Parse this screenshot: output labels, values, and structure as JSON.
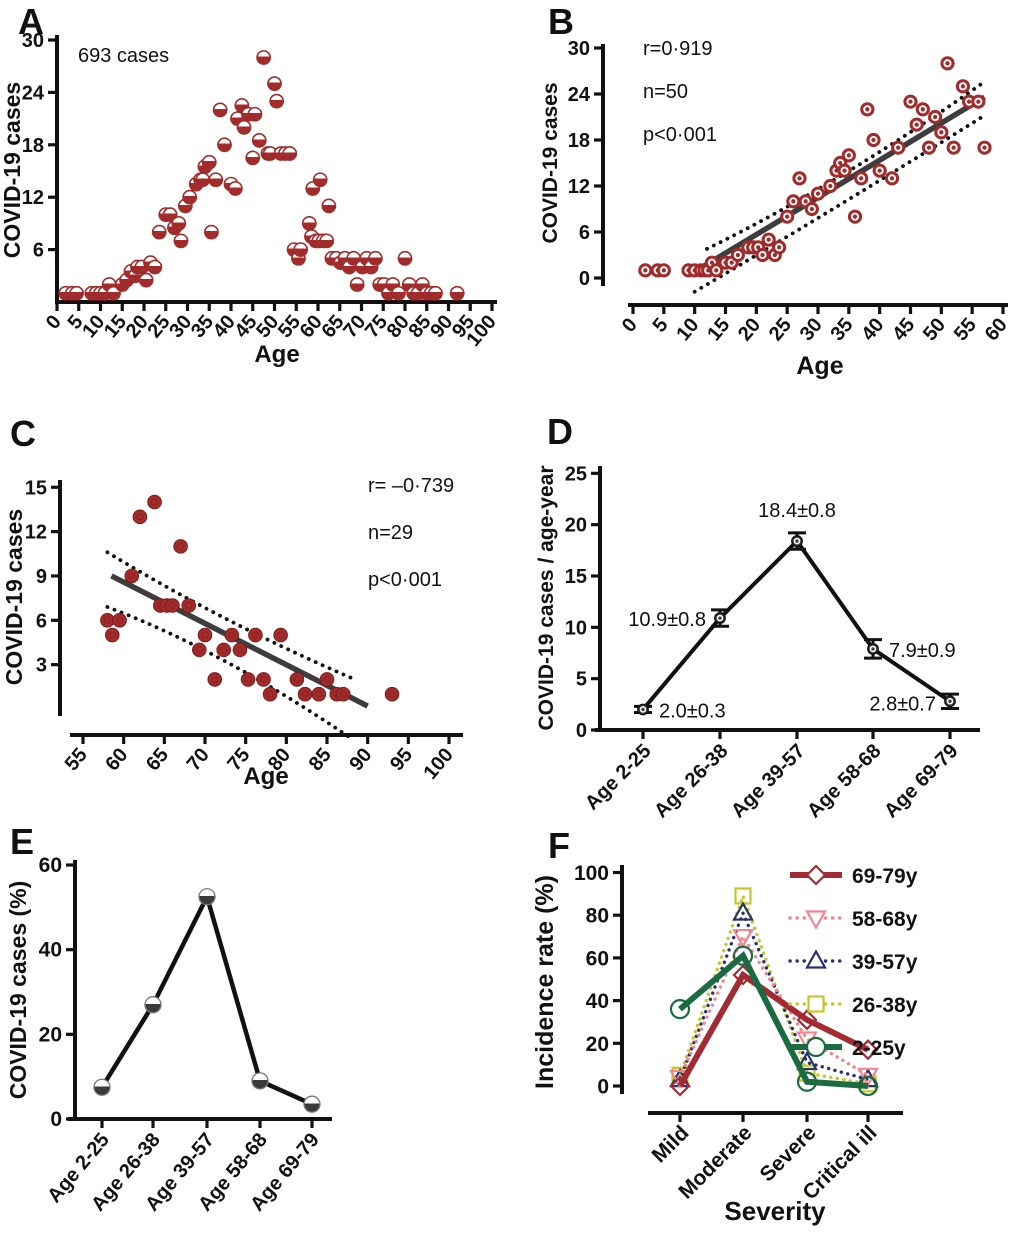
{
  "figure": {
    "description": "Six-panel COVID-19 age distribution figure",
    "panel_letters": [
      "A",
      "B",
      "C",
      "D",
      "E",
      "F"
    ]
  },
  "colors": {
    "scatter_red": "#A22B2B",
    "regression_gray": "#3d3d3d",
    "band_black": "#111111",
    "line_black": "#111111",
    "f_red": "#A32C34",
    "f_pink": "#F2858D",
    "f_navy": "#28316F",
    "f_yellow": "#C6C62C",
    "f_green": "#1A6B40"
  },
  "chart_data": [
    {
      "id": "A",
      "type": "scatter",
      "annotation": "693 cases",
      "xlabel": "Age",
      "ylabel": "COVID-19 cases",
      "x_ticks": [
        0,
        5,
        10,
        15,
        20,
        25,
        30,
        35,
        40,
        45,
        50,
        55,
        60,
        65,
        70,
        75,
        80,
        85,
        90,
        95,
        100
      ],
      "y_ticks": [
        6,
        12,
        18,
        24,
        30
      ],
      "xlim": [
        0,
        101
      ],
      "ylim": [
        0,
        30
      ],
      "marker": "half-filled-circle",
      "color": "#A22B2B",
      "points": [
        [
          2,
          1
        ],
        [
          3.5,
          1
        ],
        [
          4.5,
          1
        ],
        [
          8,
          1
        ],
        [
          9,
          1
        ],
        [
          10,
          1
        ],
        [
          11,
          1
        ],
        [
          12,
          2
        ],
        [
          13,
          1
        ],
        [
          15,
          2
        ],
        [
          16,
          2.5
        ],
        [
          17,
          3.5
        ],
        [
          18,
          3
        ],
        [
          18.5,
          4
        ],
        [
          19.5,
          4
        ],
        [
          20.5,
          2.5
        ],
        [
          21.5,
          4.5
        ],
        [
          22.5,
          4
        ],
        [
          23.5,
          8
        ],
        [
          25,
          10
        ],
        [
          26,
          10
        ],
        [
          27,
          8.5
        ],
        [
          28,
          9
        ],
        [
          28.5,
          7
        ],
        [
          29.5,
          11
        ],
        [
          30.5,
          12
        ],
        [
          32,
          13.5
        ],
        [
          33,
          14
        ],
        [
          33.5,
          14
        ],
        [
          34,
          15.5
        ],
        [
          35,
          16
        ],
        [
          35.5,
          8
        ],
        [
          36.5,
          14
        ],
        [
          37.5,
          22
        ],
        [
          38.5,
          18
        ],
        [
          40,
          13.5
        ],
        [
          41,
          13
        ],
        [
          41.5,
          21
        ],
        [
          42.5,
          22.5
        ],
        [
          43,
          20
        ],
        [
          44,
          21.5
        ],
        [
          45,
          16.5
        ],
        [
          45.5,
          21.5
        ],
        [
          46.5,
          18.5
        ],
        [
          47.5,
          28
        ],
        [
          48.5,
          17
        ],
        [
          49,
          17
        ],
        [
          50,
          25
        ],
        [
          50.5,
          23
        ],
        [
          51.5,
          17
        ],
        [
          52.5,
          17
        ],
        [
          53.5,
          17
        ],
        [
          54.5,
          6
        ],
        [
          55.5,
          5
        ],
        [
          56,
          6
        ],
        [
          58,
          9
        ],
        [
          58.8,
          13
        ],
        [
          60.5,
          14
        ],
        [
          62.5,
          11
        ],
        [
          58.5,
          7.5
        ],
        [
          59.5,
          7
        ],
        [
          60.2,
          7
        ],
        [
          61.2,
          7
        ],
        [
          62,
          7
        ],
        [
          63.2,
          5
        ],
        [
          64.2,
          5
        ],
        [
          65.2,
          4.5
        ],
        [
          66.2,
          5
        ],
        [
          67.2,
          4
        ],
        [
          68.2,
          5
        ],
        [
          69,
          2
        ],
        [
          70.2,
          4
        ],
        [
          71.2,
          5
        ],
        [
          72.2,
          4
        ],
        [
          73.2,
          5
        ],
        [
          74.2,
          2
        ],
        [
          75.2,
          2
        ],
        [
          76.2,
          1
        ],
        [
          77.2,
          2
        ],
        [
          78.5,
          1
        ],
        [
          80,
          5
        ],
        [
          81,
          2
        ],
        [
          82,
          1
        ],
        [
          83,
          1
        ],
        [
          84,
          2
        ],
        [
          85,
          1
        ],
        [
          86,
          1
        ],
        [
          87,
          1
        ],
        [
          92,
          1
        ]
      ]
    },
    {
      "id": "B",
      "type": "scatter",
      "stats": [
        "r=0·919",
        "n=50",
        "p<0·001"
      ],
      "xlabel": "Age",
      "ylabel": "COVID-19 cases",
      "x_ticks": [
        0,
        5,
        10,
        15,
        20,
        25,
        30,
        35,
        40,
        45,
        50,
        55,
        60
      ],
      "y_ticks": [
        0,
        6,
        12,
        18,
        24,
        30
      ],
      "xlim": [
        0,
        62
      ],
      "ylim": [
        0,
        30
      ],
      "marker": "ring-circle",
      "color": "#A22B2B",
      "regression": {
        "from": [
          11,
          1.3
        ],
        "to": [
          57,
          23.6
        ],
        "color": "#3d3d3d"
      },
      "bands": {
        "upper": [
          [
            12,
            3.8
          ],
          [
            34,
            12.5
          ],
          [
            57,
            25.6
          ]
        ],
        "lower": [
          [
            10,
            -1.8
          ],
          [
            34,
            9.6
          ],
          [
            57,
            21.2
          ]
        ]
      },
      "points": [
        [
          2,
          1
        ],
        [
          4,
          1
        ],
        [
          5,
          1
        ],
        [
          9,
          1
        ],
        [
          10,
          1
        ],
        [
          11,
          1
        ],
        [
          11.6,
          1
        ],
        [
          12.2,
          1
        ],
        [
          12.8,
          2
        ],
        [
          13.5,
          1
        ],
        [
          15,
          2
        ],
        [
          16,
          2
        ],
        [
          17,
          3
        ],
        [
          18.7,
          4
        ],
        [
          19.5,
          4
        ],
        [
          20.3,
          4
        ],
        [
          21,
          3
        ],
        [
          22,
          5
        ],
        [
          23,
          3
        ],
        [
          23.7,
          4
        ],
        [
          25,
          8
        ],
        [
          26,
          10
        ],
        [
          27,
          13
        ],
        [
          28,
          10
        ],
        [
          29,
          9
        ],
        [
          30,
          11
        ],
        [
          32,
          12
        ],
        [
          33,
          14
        ],
        [
          33.6,
          15
        ],
        [
          34.3,
          14
        ],
        [
          35,
          16
        ],
        [
          36,
          8
        ],
        [
          37,
          13
        ],
        [
          38,
          22
        ],
        [
          39,
          18
        ],
        [
          40,
          14
        ],
        [
          42,
          13
        ],
        [
          43,
          17
        ],
        [
          45,
          23
        ],
        [
          46,
          20
        ],
        [
          47,
          22
        ],
        [
          48,
          17
        ],
        [
          49,
          21
        ],
        [
          50,
          19
        ],
        [
          51,
          28
        ],
        [
          52,
          17
        ],
        [
          53.5,
          25
        ],
        [
          54.5,
          23
        ],
        [
          56,
          23
        ],
        [
          57,
          17
        ]
      ]
    },
    {
      "id": "C",
      "type": "scatter",
      "stats": [
        "r= –0·739",
        "n=29",
        "p<0·001"
      ],
      "xlabel": "Age",
      "ylabel": "COVID-19 cases",
      "x_ticks": [
        55,
        60,
        65,
        70,
        75,
        80,
        85,
        90,
        95,
        100
      ],
      "y_ticks": [
        3,
        6,
        9,
        12,
        15
      ],
      "xlim": [
        55,
        100
      ],
      "ylim": [
        0,
        15
      ],
      "marker": "filled-circle",
      "color": "#A22B2B",
      "regression": {
        "from": [
          58.5,
          9
        ],
        "to": [
          90,
          0.2
        ],
        "color": "#3d3d3d"
      },
      "bands": {
        "upper": [
          [
            58,
            10.6
          ],
          [
            72,
            5.9
          ],
          [
            88,
            2.1
          ]
        ],
        "lower": [
          [
            58,
            6.9
          ],
          [
            72,
            4.0
          ],
          [
            88,
            -2.0
          ]
        ]
      },
      "points": [
        [
          58,
          6
        ],
        [
          58.6,
          5
        ],
        [
          59.5,
          6
        ],
        [
          61,
          9
        ],
        [
          62,
          13
        ],
        [
          63.8,
          14
        ],
        [
          64.5,
          7
        ],
        [
          65.3,
          7
        ],
        [
          66,
          7
        ],
        [
          67,
          11
        ],
        [
          68,
          7
        ],
        [
          69.3,
          4
        ],
        [
          70,
          5
        ],
        [
          71.2,
          2
        ],
        [
          72.3,
          4
        ],
        [
          73.3,
          5
        ],
        [
          74.3,
          4
        ],
        [
          75.3,
          2
        ],
        [
          76.2,
          5
        ],
        [
          77.2,
          2
        ],
        [
          78,
          1
        ],
        [
          79.3,
          5
        ],
        [
          81.3,
          2
        ],
        [
          82.3,
          1
        ],
        [
          84,
          1
        ],
        [
          85,
          2
        ],
        [
          86.2,
          1
        ],
        [
          87,
          1
        ],
        [
          93,
          1
        ]
      ]
    },
    {
      "id": "D",
      "type": "line-errorbar",
      "categories": [
        "Age 2-25",
        "Age 26-38",
        "Age 39-57",
        "Age 58-68",
        "Age 69-79"
      ],
      "values": [
        2.0,
        10.9,
        18.4,
        7.9,
        2.8
      ],
      "errors": [
        0.3,
        0.8,
        0.8,
        0.9,
        0.7
      ],
      "point_labels": [
        "2.0±0.3",
        "10.9±0.8",
        "18.4±0.8",
        "7.9±0.9",
        "2.8±0.7"
      ],
      "ylabel": "COVID-19 cases / age-year",
      "y_ticks": [
        0,
        5,
        10,
        15,
        20,
        25
      ],
      "ylim": [
        0,
        25
      ],
      "marker": "open-circle",
      "color": "#111111"
    },
    {
      "id": "E",
      "type": "line",
      "categories": [
        "Age 2-25",
        "Age 26-38",
        "Age 39-57",
        "Age 58-68",
        "Age 69-79"
      ],
      "values": [
        7.5,
        27,
        52.5,
        9,
        3.5
      ],
      "ylabel": "COVID-19 cases (%)",
      "y_ticks": [
        0,
        20,
        40,
        60
      ],
      "ylim": [
        0,
        60
      ],
      "marker": "half-filled-circle",
      "color": "#111111"
    },
    {
      "id": "F",
      "type": "multi-line",
      "categories": [
        "Mild",
        "Moderate",
        "Severe",
        "Critical ill"
      ],
      "xlabel": "Severity",
      "ylabel": "Incidence rate (%)",
      "y_ticks": [
        0,
        20,
        40,
        60,
        80,
        100
      ],
      "ylim": [
        0,
        100
      ],
      "legend_position": "top-right",
      "series": [
        {
          "name": "69-79y",
          "color": "#A32C34",
          "line": "solid",
          "marker": "diamond",
          "values": [
            0,
            52,
            31,
            17
          ]
        },
        {
          "name": "58-68y",
          "color": "#F2858D",
          "line": "dotted",
          "marker": "triangle-down",
          "values": [
            4,
            70,
            22,
            5
          ]
        },
        {
          "name": "39-57y",
          "color": "#28316F",
          "line": "dotted",
          "marker": "triangle-up",
          "values": [
            3,
            81,
            11,
            3
          ]
        },
        {
          "name": "26-38y",
          "color": "#C6C62C",
          "line": "dotted",
          "marker": "square",
          "values": [
            5,
            89,
            6,
            1
          ]
        },
        {
          "name": "2-25y",
          "color": "#1A6B40",
          "line": "solid",
          "marker": "circle",
          "values": [
            36,
            61,
            2,
            0
          ]
        }
      ]
    }
  ]
}
